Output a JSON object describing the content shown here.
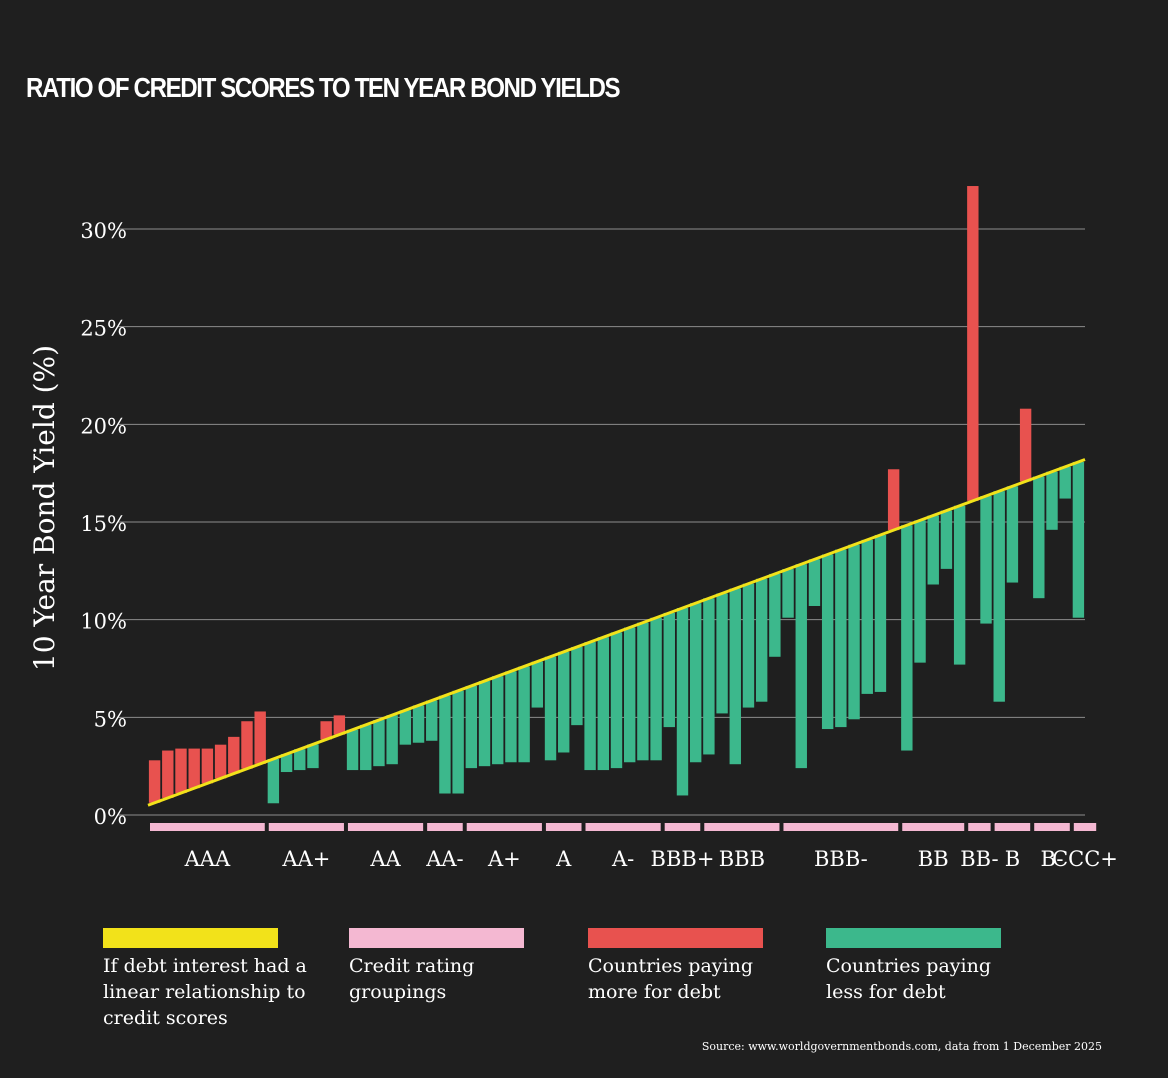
{
  "chart_data": {
    "type": "bar",
    "title": "RATIO OF CREDIT SCORES TO TEN YEAR BOND YIELDS",
    "ylabel": "10 Year Bond Yield (%)",
    "xlabel": "",
    "ylim": [
      0,
      30
    ],
    "yticks": [
      "0%",
      "5%",
      "10%",
      "15%",
      "20%",
      "25%",
      "30%"
    ],
    "yticks_values": [
      0,
      5,
      10,
      15,
      20,
      25,
      30
    ],
    "grid": true,
    "linear_line": {
      "start": 0.5,
      "end": 18.2
    },
    "values": [
      2.8,
      3.3,
      3.4,
      3.4,
      3.4,
      3.6,
      4.0,
      4.8,
      5.3,
      0.6,
      2.2,
      2.3,
      2.4,
      4.8,
      5.1,
      2.3,
      2.3,
      2.5,
      2.6,
      3.6,
      3.7,
      3.8,
      1.1,
      1.1,
      2.4,
      2.5,
      2.6,
      2.7,
      2.7,
      5.5,
      2.8,
      3.2,
      4.6,
      2.3,
      2.3,
      2.4,
      2.7,
      2.8,
      2.8,
      4.5,
      1.0,
      2.7,
      3.1,
      5.2,
      2.6,
      5.5,
      5.8,
      8.1,
      10.1,
      2.4,
      10.7,
      4.4,
      4.5,
      4.9,
      6.2,
      6.3,
      17.7,
      3.3,
      7.8,
      11.8,
      12.6,
      7.7,
      32.2,
      9.8,
      5.8,
      11.9,
      20.8,
      11.1,
      14.6,
      16.2,
      10.1
    ],
    "groups": [
      {
        "label": "AAA",
        "start": 0,
        "end": 8
      },
      {
        "label": "AA+",
        "start": 9,
        "end": 14
      },
      {
        "label": "AA",
        "start": 15,
        "end": 20
      },
      {
        "label": "AA-",
        "start": 21,
        "end": 23
      },
      {
        "label": "A+",
        "start": 24,
        "end": 29
      },
      {
        "label": "A",
        "start": 30,
        "end": 32
      },
      {
        "label": "A-",
        "start": 33,
        "end": 38
      },
      {
        "label": "BBB+",
        "start": 39,
        "end": 41
      },
      {
        "label": "BBB",
        "start": 42,
        "end": 47
      },
      {
        "label": "BBB-",
        "start": 48,
        "end": 56
      },
      {
        "label": "BB",
        "start": 57,
        "end": 61
      },
      {
        "label": "BB-",
        "start": 62,
        "end": 63
      },
      {
        "label": "B",
        "start": 64,
        "end": 66
      },
      {
        "label": "B-",
        "start": 67,
        "end": 69
      },
      {
        "label": "CCC+",
        "start": 70,
        "end": 71
      }
    ],
    "legend": [
      {
        "key": "linear",
        "label": "If debt interest had a linear relationship to credit scores"
      },
      {
        "key": "groupings",
        "label": "Credit rating groupings"
      },
      {
        "key": "more",
        "label": "Countries paying more for debt"
      },
      {
        "key": "less",
        "label": "Countries paying less for debt"
      }
    ]
  },
  "colors": {
    "background": "#1f1f1f",
    "linear": "#f2e21a",
    "groupings": "#f4b8d2",
    "more": "#e8524f",
    "less": "#3cb88c",
    "grid": "#8c8c8c"
  },
  "source": "Source: www.worldgovernmentbonds.com, data from 1 December 2025"
}
